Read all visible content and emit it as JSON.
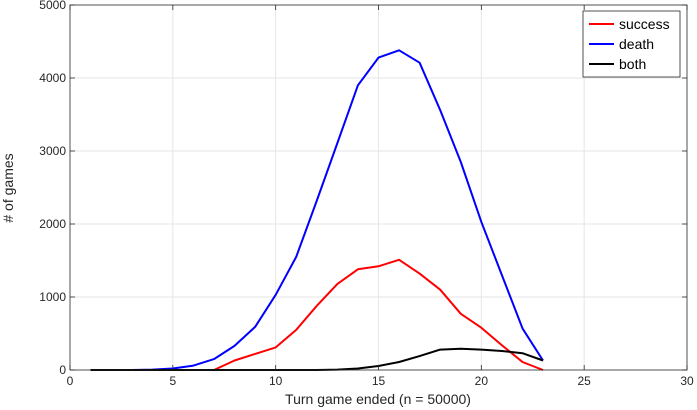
{
  "chart_data": {
    "type": "line",
    "xlabel": "Turn game ended (n = 50000)",
    "ylabel": "# of games",
    "xlim": [
      0,
      30
    ],
    "ylim": [
      0,
      5000
    ],
    "xticks": [
      0,
      5,
      10,
      15,
      20,
      25,
      30
    ],
    "yticks": [
      0,
      1000,
      2000,
      3000,
      4000,
      5000
    ],
    "grid": true,
    "legend_position": "top-right",
    "series": [
      {
        "name": "success",
        "color": "#ff0000",
        "x": [
          1,
          2,
          3,
          4,
          5,
          6,
          7,
          8,
          9,
          10,
          11,
          12,
          13,
          14,
          15,
          16,
          17,
          18,
          19,
          20,
          21,
          22,
          23
        ],
        "y": [
          0,
          0,
          0,
          0,
          0,
          0,
          0,
          130,
          220,
          310,
          550,
          880,
          1180,
          1380,
          1420,
          1510,
          1320,
          1100,
          770,
          580,
          340,
          110,
          0
        ]
      },
      {
        "name": "death",
        "color": "#0000ff",
        "x": [
          1,
          2,
          3,
          4,
          5,
          6,
          7,
          8,
          9,
          10,
          11,
          12,
          13,
          14,
          15,
          16,
          17,
          18,
          19,
          20,
          21,
          22,
          23
        ],
        "y": [
          0,
          0,
          0,
          5,
          20,
          60,
          150,
          330,
          590,
          1030,
          1550,
          2320,
          3110,
          3900,
          4280,
          4380,
          4210,
          3560,
          2850,
          2030,
          1300,
          570,
          130
        ]
      },
      {
        "name": "both",
        "color": "#000000",
        "x": [
          1,
          2,
          3,
          4,
          5,
          6,
          7,
          8,
          9,
          10,
          11,
          12,
          13,
          14,
          15,
          16,
          17,
          18,
          19,
          20,
          21,
          22,
          23
        ],
        "y": [
          0,
          0,
          0,
          0,
          0,
          0,
          0,
          0,
          0,
          0,
          0,
          0,
          5,
          20,
          55,
          110,
          190,
          280,
          290,
          280,
          260,
          230,
          130
        ]
      }
    ]
  }
}
